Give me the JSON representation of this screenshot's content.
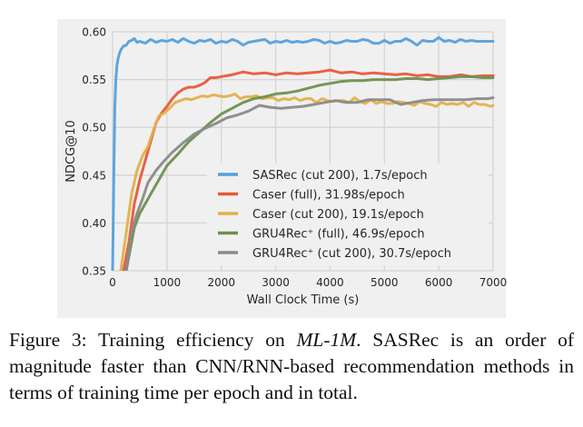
{
  "chart_data": {
    "type": "line",
    "title": "",
    "xlabel": "Wall Clock Time (s)",
    "ylabel": "NDCG@10",
    "xlim": [
      0,
      7000
    ],
    "ylim": [
      0.35,
      0.6
    ],
    "xticks": [
      0,
      1000,
      2000,
      3000,
      4000,
      5000,
      6000,
      7000
    ],
    "xtick_labels": [
      "0",
      "1000",
      "2000",
      "3000",
      "4000",
      "5000",
      "6000",
      "7000"
    ],
    "yticks": [
      0.35,
      0.4,
      0.45,
      0.5,
      0.55,
      0.6
    ],
    "ytick_labels": [
      "0.35",
      "0.40",
      "0.45",
      "0.50",
      "0.55",
      "0.60"
    ],
    "grid": true,
    "legend_position": "lower-right",
    "series": [
      {
        "name": "SASRec (cut 200), 1.7s/epoch",
        "color": "#55a0dc",
        "x": [
          0,
          20,
          40,
          60,
          80,
          100,
          130,
          160,
          200,
          250,
          300,
          350,
          400,
          450,
          500,
          600,
          700,
          800,
          900,
          1000,
          1100,
          1200,
          1300,
          1400,
          1500,
          1600,
          1700,
          1800,
          1900,
          2000,
          2100,
          2200,
          2300,
          2400,
          2500,
          2600,
          2700,
          2800,
          2900,
          3000,
          3100,
          3200,
          3300,
          3400,
          3500,
          3600,
          3700,
          3800,
          3900,
          4000,
          4100,
          4200,
          4300,
          4400,
          4500,
          4600,
          4700,
          4800,
          4900,
          5000,
          5100,
          5200,
          5300,
          5400,
          5500,
          5600,
          5700,
          5800,
          5900,
          6000,
          6100,
          6200,
          6300,
          6400,
          6500,
          6600,
          6700,
          6800,
          6900,
          7000
        ],
        "y": [
          0.35,
          0.44,
          0.52,
          0.55,
          0.565,
          0.572,
          0.578,
          0.582,
          0.585,
          0.586,
          0.59,
          0.591,
          0.593,
          0.589,
          0.59,
          0.588,
          0.592,
          0.589,
          0.591,
          0.59,
          0.592,
          0.589,
          0.593,
          0.59,
          0.588,
          0.591,
          0.59,
          0.592,
          0.588,
          0.59,
          0.589,
          0.592,
          0.59,
          0.586,
          0.589,
          0.59,
          0.591,
          0.592,
          0.588,
          0.59,
          0.589,
          0.591,
          0.589,
          0.59,
          0.589,
          0.59,
          0.592,
          0.591,
          0.588,
          0.59,
          0.588,
          0.589,
          0.591,
          0.59,
          0.59,
          0.592,
          0.591,
          0.588,
          0.588,
          0.591,
          0.588,
          0.59,
          0.59,
          0.593,
          0.59,
          0.586,
          0.591,
          0.59,
          0.59,
          0.594,
          0.59,
          0.591,
          0.589,
          0.592,
          0.59,
          0.591,
          0.59,
          0.59,
          0.59,
          0.59
        ]
      },
      {
        "name": "Caser (full), 31.98s/epoch",
        "color": "#e8583b",
        "x": [
          200,
          300,
          400,
          500,
          600,
          700,
          800,
          900,
          1000,
          1100,
          1200,
          1300,
          1400,
          1500,
          1600,
          1700,
          1800,
          1900,
          2000,
          2200,
          2400,
          2600,
          2800,
          3000,
          3200,
          3400,
          3600,
          3800,
          4000,
          4200,
          4400,
          4600,
          4800,
          5000,
          5200,
          5400,
          5600,
          5800,
          6000,
          6200,
          6400,
          6600,
          6800,
          7000
        ],
        "y": [
          0.35,
          0.38,
          0.42,
          0.445,
          0.465,
          0.485,
          0.505,
          0.515,
          0.522,
          0.53,
          0.536,
          0.54,
          0.542,
          0.542,
          0.544,
          0.547,
          0.552,
          0.552,
          0.553,
          0.555,
          0.558,
          0.556,
          0.557,
          0.555,
          0.557,
          0.556,
          0.557,
          0.558,
          0.56,
          0.557,
          0.558,
          0.556,
          0.557,
          0.556,
          0.555,
          0.556,
          0.554,
          0.555,
          0.553,
          0.553,
          0.555,
          0.553,
          0.554,
          0.554
        ]
      },
      {
        "name": "Caser (cut 200), 19.1s/epoch",
        "color": "#e2b048",
        "x": [
          150,
          250,
          350,
          450,
          550,
          650,
          750,
          850,
          950,
          1050,
          1150,
          1250,
          1350,
          1450,
          1550,
          1650,
          1750,
          1850,
          1950,
          2050,
          2150,
          2250,
          2350,
          2450,
          2550,
          2650,
          2750,
          2850,
          2950,
          3050,
          3150,
          3250,
          3350,
          3450,
          3550,
          3650,
          3750,
          3850,
          3950,
          4050,
          4150,
          4250,
          4350,
          4450,
          4550,
          4650,
          4750,
          4850,
          4950,
          5050,
          5150,
          5250,
          5350,
          5450,
          5550,
          5650,
          5750,
          5850,
          5950,
          6050,
          6150,
          6250,
          6350,
          6450,
          6550,
          6650,
          6750,
          6850,
          6950,
          7000
        ],
        "y": [
          0.35,
          0.39,
          0.43,
          0.455,
          0.47,
          0.48,
          0.497,
          0.512,
          0.515,
          0.52,
          0.526,
          0.528,
          0.53,
          0.529,
          0.531,
          0.533,
          0.532,
          0.534,
          0.533,
          0.532,
          0.533,
          0.535,
          0.53,
          0.532,
          0.532,
          0.533,
          0.53,
          0.531,
          0.531,
          0.528,
          0.53,
          0.529,
          0.531,
          0.528,
          0.53,
          0.53,
          0.526,
          0.53,
          0.528,
          0.527,
          0.528,
          0.528,
          0.526,
          0.531,
          0.527,
          0.525,
          0.529,
          0.525,
          0.527,
          0.525,
          0.525,
          0.527,
          0.526,
          0.525,
          0.523,
          0.527,
          0.525,
          0.524,
          0.522,
          0.526,
          0.524,
          0.525,
          0.524,
          0.526,
          0.522,
          0.526,
          0.524,
          0.524,
          0.522,
          0.523
        ]
      },
      {
        "name": "GRU4Rec⁺ (full), 46.9s/epoch",
        "color": "#6d904f",
        "x": [
          250,
          400,
          500,
          600,
          700,
          800,
          900,
          1000,
          1200,
          1400,
          1600,
          1800,
          2000,
          2200,
          2400,
          2600,
          2800,
          3000,
          3200,
          3400,
          3600,
          3800,
          4000,
          4200,
          4400,
          4600,
          4800,
          5000,
          5200,
          5400,
          5600,
          5800,
          6000,
          6200,
          6400,
          6600,
          6800,
          7000
        ],
        "y": [
          0.35,
          0.395,
          0.41,
          0.42,
          0.43,
          0.44,
          0.45,
          0.46,
          0.472,
          0.485,
          0.495,
          0.505,
          0.514,
          0.52,
          0.526,
          0.53,
          0.532,
          0.535,
          0.536,
          0.538,
          0.541,
          0.544,
          0.546,
          0.548,
          0.549,
          0.549,
          0.55,
          0.55,
          0.55,
          0.551,
          0.551,
          0.55,
          0.551,
          0.552,
          0.553,
          0.553,
          0.552,
          0.552
        ]
      },
      {
        "name": "GRU4Rec⁺ (cut 200), 30.7s/epoch",
        "color": "#8a8a8a",
        "x": [
          250,
          350,
          450,
          550,
          650,
          800,
          950,
          1100,
          1300,
          1500,
          1700,
          1900,
          2100,
          2300,
          2500,
          2700,
          2900,
          3100,
          3300,
          3500,
          3700,
          3900,
          4100,
          4300,
          4500,
          4700,
          4900,
          5100,
          5300,
          5500,
          5700,
          5900,
          6100,
          6300,
          6500,
          6700,
          6900,
          7000
        ],
        "y": [
          0.35,
          0.39,
          0.41,
          0.425,
          0.442,
          0.455,
          0.465,
          0.474,
          0.484,
          0.493,
          0.499,
          0.504,
          0.51,
          0.513,
          0.517,
          0.523,
          0.521,
          0.52,
          0.521,
          0.522,
          0.524,
          0.526,
          0.528,
          0.526,
          0.526,
          0.529,
          0.529,
          0.529,
          0.524,
          0.526,
          0.528,
          0.529,
          0.529,
          0.529,
          0.529,
          0.53,
          0.53,
          0.531
        ]
      }
    ],
    "legend": [
      {
        "label": "SASRec (cut 200), 1.7s/epoch",
        "color": "#55a0dc"
      },
      {
        "label": "Caser (full), 31.98s/epoch",
        "color": "#e8583b"
      },
      {
        "label": "Caser (cut 200), 19.1s/epoch",
        "color": "#e2b048"
      },
      {
        "label": "GRU4Rec⁺ (full), 46.9s/epoch",
        "color": "#6d904f"
      },
      {
        "label": "GRU4Rec⁺ (cut 200), 30.7s/epoch",
        "color": "#8a8a8a"
      }
    ],
    "background_color": "#f0f0f0",
    "grid_color": "#d4d4d4"
  },
  "caption": {
    "label": "Figure 3:",
    "text_before_italic": " Training efficiency on ",
    "italic": "ML-1M",
    "text_after_italic": ". SASRec is an order of magnitude faster than CNN/RNN-based recommendation methods in terms of training time per epoch and in total."
  }
}
